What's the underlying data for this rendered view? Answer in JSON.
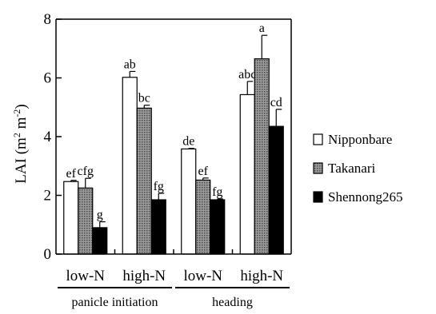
{
  "chart_data": {
    "type": "bar",
    "ylabel": "LAI (m",
    "ylabel_sup1": "2",
    "ylabel_mid": " m",
    "ylabel_sup2": "-2",
    "ylabel_end": ")",
    "ylim": [
      0,
      8
    ],
    "yticks": [
      "0",
      "2",
      "4",
      "6",
      "8"
    ],
    "categories": [
      "low-N",
      "high-N",
      "low-N",
      "high-N"
    ],
    "groups": [
      {
        "label": "panicle initiation",
        "categories": [
          0,
          1
        ]
      },
      {
        "label": "heading",
        "categories": [
          2,
          3
        ]
      }
    ],
    "legend_position": "right",
    "series": [
      {
        "name": "Nipponbare",
        "fill": "white",
        "values": [
          2.47,
          6.02,
          3.58,
          5.43
        ],
        "errors": [
          0.04,
          0.2,
          0.02,
          0.45
        ],
        "labels": [
          "ef",
          "ab",
          "de",
          "abc"
        ]
      },
      {
        "name": "Takanari",
        "fill": "pattern",
        "values": [
          2.25,
          4.97,
          2.52,
          6.65
        ],
        "errors": [
          0.33,
          0.1,
          0.07,
          0.8
        ],
        "labels": [
          "cfg",
          "bc",
          "ef",
          "a"
        ]
      },
      {
        "name": "Shennong265",
        "fill": "black",
        "values": [
          0.9,
          1.85,
          1.85,
          4.35
        ],
        "errors": [
          0.2,
          0.22,
          0.03,
          0.58
        ],
        "labels": [
          "g",
          "fg",
          "fg",
          "cd"
        ]
      }
    ]
  }
}
